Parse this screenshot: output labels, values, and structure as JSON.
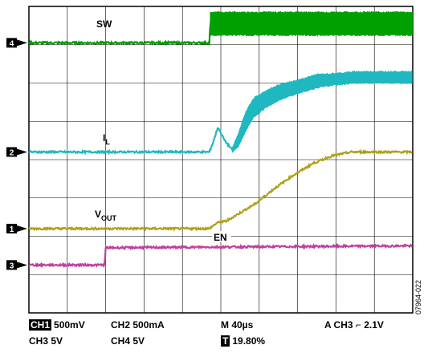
{
  "chart_data": {
    "type": "line",
    "title": "",
    "xlabel": "",
    "ylabel": "",
    "grid": true,
    "divisions": {
      "x": 10,
      "y": 8
    },
    "time_units": "µs",
    "xlim": [
      0,
      400
    ],
    "series": [
      {
        "name": "SW",
        "channel": "4",
        "color": "#00a000",
        "x": [
          0,
          188,
          189,
          400
        ],
        "y": [
          7.05,
          7.05,
          7.55,
          7.55
        ],
        "envelope_band_divs": 0.6,
        "band_starts_at": 189
      },
      {
        "name": "IL",
        "label_main": "I",
        "label_sub": "L",
        "channel": "2",
        "color": "#20b8c0",
        "x": [
          0,
          188,
          192,
          197,
          204,
          212,
          218,
          226,
          234,
          245,
          260,
          280,
          300,
          320,
          340,
          400
        ],
        "y": [
          4.2,
          4.2,
          4.45,
          4.85,
          4.5,
          4.25,
          4.5,
          5.0,
          5.35,
          5.55,
          5.75,
          5.9,
          6.05,
          6.1,
          6.15,
          6.15
        ],
        "envelope_band_divs": [
          0,
          0,
          0,
          0,
          0,
          0.1,
          0.35,
          0.5,
          0.5,
          0.45,
          0.4,
          0.35,
          0.35,
          0.3,
          0.3,
          0.3
        ],
        "envelope_starts_at": 212
      },
      {
        "name": "VOUT",
        "label_main": "V",
        "label_sub": "OUT",
        "channel": "1",
        "color": "#b0a018",
        "x": [
          0,
          188,
          196,
          206,
          216,
          236,
          256,
          276,
          296,
          316,
          336,
          356,
          400
        ],
        "y": [
          2.2,
          2.2,
          2.35,
          2.4,
          2.55,
          2.85,
          3.25,
          3.6,
          3.9,
          4.1,
          4.2,
          4.2,
          4.2
        ]
      },
      {
        "name": "EN",
        "channel": "3",
        "color": "#c040a0",
        "x": [
          0,
          79,
          80,
          200,
          400
        ],
        "y": [
          1.25,
          1.25,
          1.7,
          1.72,
          1.75
        ]
      }
    ],
    "channel_markers": [
      {
        "label": "4",
        "level_div": 7.05
      },
      {
        "label": "2",
        "level_div": 4.2
      },
      {
        "label": "1",
        "level_div": 2.2
      },
      {
        "label": "3",
        "level_div": 1.25
      }
    ],
    "annotations": {
      "sw": "SW",
      "il": "I",
      "il_sub": "L",
      "vout": "V",
      "vout_sub": "OUT",
      "en": "EN"
    },
    "readout": {
      "ch1_tag": "CH1",
      "ch1_scale": "500mV",
      "ch2": "CH2 500mA",
      "ch3": "CH3 5V",
      "ch4": "CH4 5V",
      "timebase": "M 40µs",
      "trigger_tag": "T",
      "trigger_pos": "19.80%",
      "trigger": "A  CH3 ⌐ 2.1V"
    },
    "figure_id": "07964-022"
  }
}
